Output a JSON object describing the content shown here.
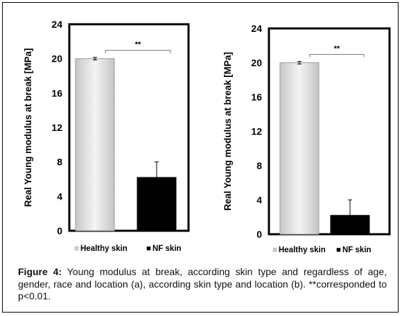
{
  "chart_data": [
    {
      "type": "bar",
      "categories": [
        "Healthy skin",
        "NF skin"
      ],
      "values": [
        20,
        6.2
      ],
      "errors": [
        0.15,
        1.8
      ],
      "colors": [
        "#e6e6e6",
        "#000000"
      ],
      "xlabel": "",
      "ylabel": "Real Young modulus at break [MPa]",
      "ylim": [
        0,
        24
      ],
      "yticks": [
        "0",
        "4",
        "8",
        "12",
        "16",
        "20",
        "24"
      ],
      "significance": "**",
      "legend_position": "bottom",
      "legend": [
        "Healthy skin",
        "NF skin"
      ]
    },
    {
      "type": "bar",
      "categories": [
        "Healthy skin",
        "NF skin"
      ],
      "values": [
        20,
        2.2
      ],
      "errors": [
        0.15,
        1.8
      ],
      "colors": [
        "#e6e6e6",
        "#000000"
      ],
      "xlabel": "",
      "ylabel": "Real Young modulus at break [MPa]",
      "ylim": [
        0,
        24
      ],
      "yticks": [
        "0",
        "4",
        "8",
        "12",
        "16",
        "20",
        "24"
      ],
      "significance": "**",
      "legend_position": "bottom",
      "legend": [
        "Healthy skin",
        "NF skin"
      ]
    }
  ],
  "caption": {
    "label": "Figure 4:",
    "text": " Young modulus at break, according skin type and regardless of age, gender, race and location (a), according skin type and location (b). **corresponded to p<0.01."
  }
}
